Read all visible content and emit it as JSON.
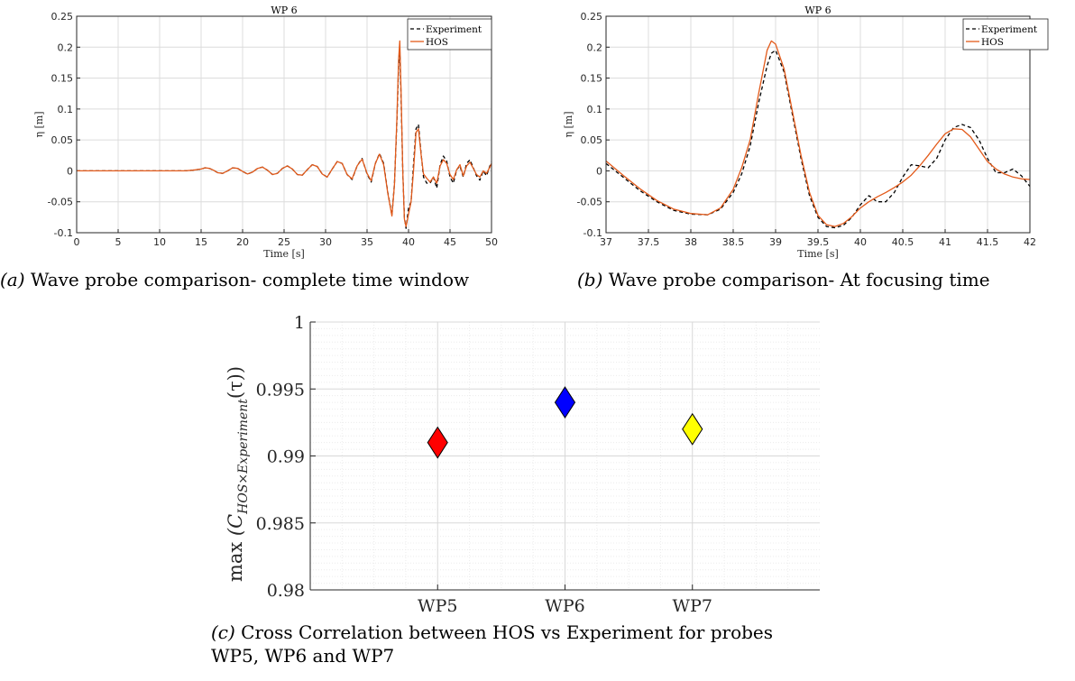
{
  "captions": {
    "a_tag": "(a)",
    "a_text": " Wave probe comparison- complete time window",
    "b_tag": "(b)",
    "b_text": " Wave probe comparison- At focusing time",
    "c_tag": "(c)",
    "c_line1": " Cross Correlation between HOS vs Experiment for probes",
    "c_line2": "WP5, WP6 and WP7"
  },
  "chart_data": [
    {
      "id": "a",
      "type": "line",
      "title": "WP 6",
      "xlabel": "Time [s]",
      "ylabel": "η [m]",
      "xlim": [
        0,
        50
      ],
      "ylim": [
        -0.1,
        0.25
      ],
      "xticks": [
        "0",
        "5",
        "10",
        "15",
        "20",
        "25",
        "30",
        "35",
        "40",
        "45",
        "50"
      ],
      "yticks": [
        "-0.1",
        "-0.05",
        "0",
        "0.05",
        "0.1",
        "0.15",
        "0.2",
        "0.25"
      ],
      "grid": true,
      "legend_position": "top-right",
      "series": [
        {
          "name": "Experiment",
          "style": "dashed",
          "color": "#000000",
          "x": [
            0,
            13,
            14,
            15,
            15.5,
            16,
            16.5,
            17,
            17.6,
            18.2,
            18.8,
            19.4,
            20,
            20.6,
            21.2,
            21.8,
            22.4,
            23,
            23.6,
            24.2,
            24.8,
            25.4,
            26,
            26.6,
            27.2,
            27.8,
            28.4,
            29,
            29.6,
            30.2,
            30.8,
            31.4,
            32,
            32.6,
            33.2,
            33.8,
            34.4,
            35,
            35.5,
            36,
            36.5,
            37,
            37.5,
            38,
            38.3,
            38.6,
            38.8,
            38.95,
            39.1,
            39.3,
            39.5,
            39.7,
            40,
            40.3,
            40.6,
            40.9,
            41.2,
            41.5,
            41.8,
            42.2,
            42.6,
            43,
            43.4,
            43.8,
            44.2,
            44.6,
            45,
            45.4,
            45.8,
            46.2,
            46.6,
            47,
            47.4,
            47.8,
            48.2,
            48.6,
            49,
            49.4,
            49.8,
            50
          ],
          "y": [
            0,
            0,
            0.001,
            0.003,
            0.005,
            0.004,
            0.001,
            -0.003,
            -0.004,
            0,
            0.005,
            0.004,
            -0.001,
            -0.005,
            -0.002,
            0.004,
            0.006,
            0.001,
            -0.006,
            -0.004,
            0.004,
            0.008,
            0.003,
            -0.006,
            -0.007,
            0.002,
            0.01,
            0.007,
            -0.005,
            -0.01,
            0.003,
            0.015,
            0.012,
            -0.006,
            -0.014,
            0.008,
            0.02,
            -0.005,
            -0.018,
            0.012,
            0.028,
            0.012,
            -0.035,
            -0.072,
            -0.02,
            0.08,
            0.17,
            0.195,
            0.12,
            0.0,
            -0.075,
            -0.093,
            -0.06,
            -0.05,
            0.01,
            0.068,
            0.075,
            0.03,
            -0.01,
            -0.02,
            -0.02,
            -0.01,
            -0.028,
            0.01,
            0.024,
            0.016,
            -0.01,
            -0.02,
            0.002,
            0.008,
            -0.01,
            0.012,
            0.018,
            0.005,
            -0.008,
            -0.015,
            0.0,
            -0.008,
            0.008,
            0.014
          ]
        },
        {
          "name": "HOS",
          "style": "solid",
          "color": "#e35a1a",
          "x": [
            0,
            13,
            14,
            15,
            15.5,
            16,
            16.5,
            17,
            17.6,
            18.2,
            18.8,
            19.4,
            20,
            20.6,
            21.2,
            21.8,
            22.4,
            23,
            23.6,
            24.2,
            24.8,
            25.4,
            26,
            26.6,
            27.2,
            27.8,
            28.4,
            29,
            29.6,
            30.2,
            30.8,
            31.4,
            32,
            32.6,
            33.2,
            33.8,
            34.4,
            35,
            35.5,
            36,
            36.5,
            37,
            37.5,
            38,
            38.3,
            38.6,
            38.8,
            38.95,
            39.1,
            39.3,
            39.5,
            39.7,
            40,
            40.3,
            40.6,
            40.9,
            41.2,
            41.5,
            41.8,
            42.2,
            42.6,
            43,
            43.4,
            43.8,
            44.2,
            44.6,
            45,
            45.4,
            45.8,
            46.2,
            46.6,
            47,
            47.4,
            47.8,
            48.2,
            48.6,
            49,
            49.4,
            49.8,
            50
          ],
          "y": [
            0,
            0,
            0.001,
            0.003,
            0.005,
            0.004,
            0.001,
            -0.003,
            -0.004,
            0,
            0.005,
            0.004,
            -0.001,
            -0.005,
            -0.002,
            0.004,
            0.006,
            0.001,
            -0.006,
            -0.004,
            0.004,
            0.008,
            0.003,
            -0.006,
            -0.007,
            0.002,
            0.01,
            0.007,
            -0.005,
            -0.01,
            0.003,
            0.015,
            0.012,
            -0.006,
            -0.013,
            0.008,
            0.019,
            -0.004,
            -0.016,
            0.012,
            0.027,
            0.01,
            -0.036,
            -0.073,
            -0.022,
            0.085,
            0.18,
            0.21,
            0.13,
            0.0,
            -0.078,
            -0.09,
            -0.07,
            -0.05,
            0.0,
            0.062,
            0.068,
            0.028,
            -0.005,
            -0.012,
            -0.018,
            -0.01,
            -0.02,
            0.008,
            0.018,
            0.012,
            -0.006,
            -0.014,
            0.002,
            0.01,
            -0.008,
            0.008,
            0.014,
            0.004,
            -0.006,
            -0.01,
            0.0,
            -0.004,
            0.006,
            0.012
          ]
        }
      ]
    },
    {
      "id": "b",
      "type": "line",
      "title": "WP 6",
      "xlabel": "Time [s]",
      "ylabel": "η [m]",
      "xlim": [
        37,
        42
      ],
      "ylim": [
        -0.1,
        0.25
      ],
      "xticks": [
        "37",
        "37.5",
        "38",
        "38.5",
        "39",
        "39.5",
        "40",
        "40.5",
        "41",
        "41.5",
        "42"
      ],
      "yticks": [
        "-0.1",
        "-0.05",
        "0",
        "0.05",
        "0.1",
        "0.15",
        "0.2",
        "0.25"
      ],
      "grid": true,
      "legend_position": "top-right",
      "series": [
        {
          "name": "Experiment",
          "style": "dashed",
          "color": "#000000",
          "x": [
            37,
            37.2,
            37.4,
            37.6,
            37.8,
            38,
            38.2,
            38.35,
            38.5,
            38.6,
            38.7,
            38.8,
            38.9,
            38.95,
            39,
            39.1,
            39.2,
            39.3,
            39.4,
            39.5,
            39.6,
            39.7,
            39.8,
            39.9,
            40,
            40.1,
            40.2,
            40.3,
            40.4,
            40.5,
            40.6,
            40.7,
            40.8,
            40.9,
            41,
            41.1,
            41.2,
            41.3,
            41.4,
            41.5,
            41.6,
            41.7,
            41.8,
            41.9,
            42
          ],
          "y": [
            0.012,
            -0.01,
            -0.032,
            -0.05,
            -0.064,
            -0.07,
            -0.071,
            -0.062,
            -0.035,
            -0.005,
            0.04,
            0.11,
            0.17,
            0.19,
            0.195,
            0.16,
            0.09,
            0.02,
            -0.04,
            -0.075,
            -0.09,
            -0.092,
            -0.088,
            -0.075,
            -0.055,
            -0.04,
            -0.05,
            -0.05,
            -0.035,
            -0.01,
            0.01,
            0.008,
            0.005,
            0.02,
            0.05,
            0.07,
            0.075,
            0.07,
            0.05,
            0.02,
            -0.003,
            -0.003,
            0.003,
            -0.008,
            -0.025
          ]
        },
        {
          "name": "HOS",
          "style": "solid",
          "color": "#e35a1a",
          "x": [
            37,
            37.2,
            37.4,
            37.6,
            37.8,
            38,
            38.2,
            38.35,
            38.5,
            38.6,
            38.7,
            38.8,
            38.9,
            38.95,
            39,
            39.1,
            39.2,
            39.3,
            39.4,
            39.5,
            39.6,
            39.7,
            39.8,
            39.9,
            40,
            40.1,
            40.2,
            40.3,
            40.4,
            40.5,
            40.6,
            40.7,
            40.8,
            40.9,
            41,
            41.1,
            41.2,
            41.3,
            41.4,
            41.5,
            41.6,
            41.7,
            41.8,
            41.9,
            42
          ],
          "y": [
            0.016,
            -0.007,
            -0.029,
            -0.048,
            -0.062,
            -0.069,
            -0.071,
            -0.06,
            -0.03,
            0.005,
            0.05,
            0.125,
            0.195,
            0.21,
            0.205,
            0.165,
            0.095,
            0.025,
            -0.035,
            -0.072,
            -0.087,
            -0.09,
            -0.085,
            -0.074,
            -0.06,
            -0.05,
            -0.042,
            -0.035,
            -0.027,
            -0.018,
            -0.007,
            0.008,
            0.025,
            0.043,
            0.06,
            0.068,
            0.067,
            0.055,
            0.035,
            0.015,
            0.003,
            -0.005,
            -0.01,
            -0.013,
            -0.014
          ]
        }
      ]
    },
    {
      "id": "c",
      "type": "scatter",
      "xlabel": "",
      "ylabel_prefix": "max",
      "ylabel_main": "(C",
      "ylabel_sub": "HOS×Experiment",
      "ylabel_suffix": "(τ))",
      "categories": [
        "WP5",
        "WP6",
        "WP7"
      ],
      "values": [
        0.991,
        0.994,
        0.992
      ],
      "colors": [
        "#ff0000",
        "#0000ff",
        "#ffff00"
      ],
      "marker": "diamond",
      "xlim": [
        0,
        4
      ],
      "ylim": [
        0.98,
        1
      ],
      "yticks": [
        "0.98",
        "0.985",
        "0.99",
        "0.995",
        "1"
      ],
      "grid": true,
      "minor_grid": true
    }
  ]
}
